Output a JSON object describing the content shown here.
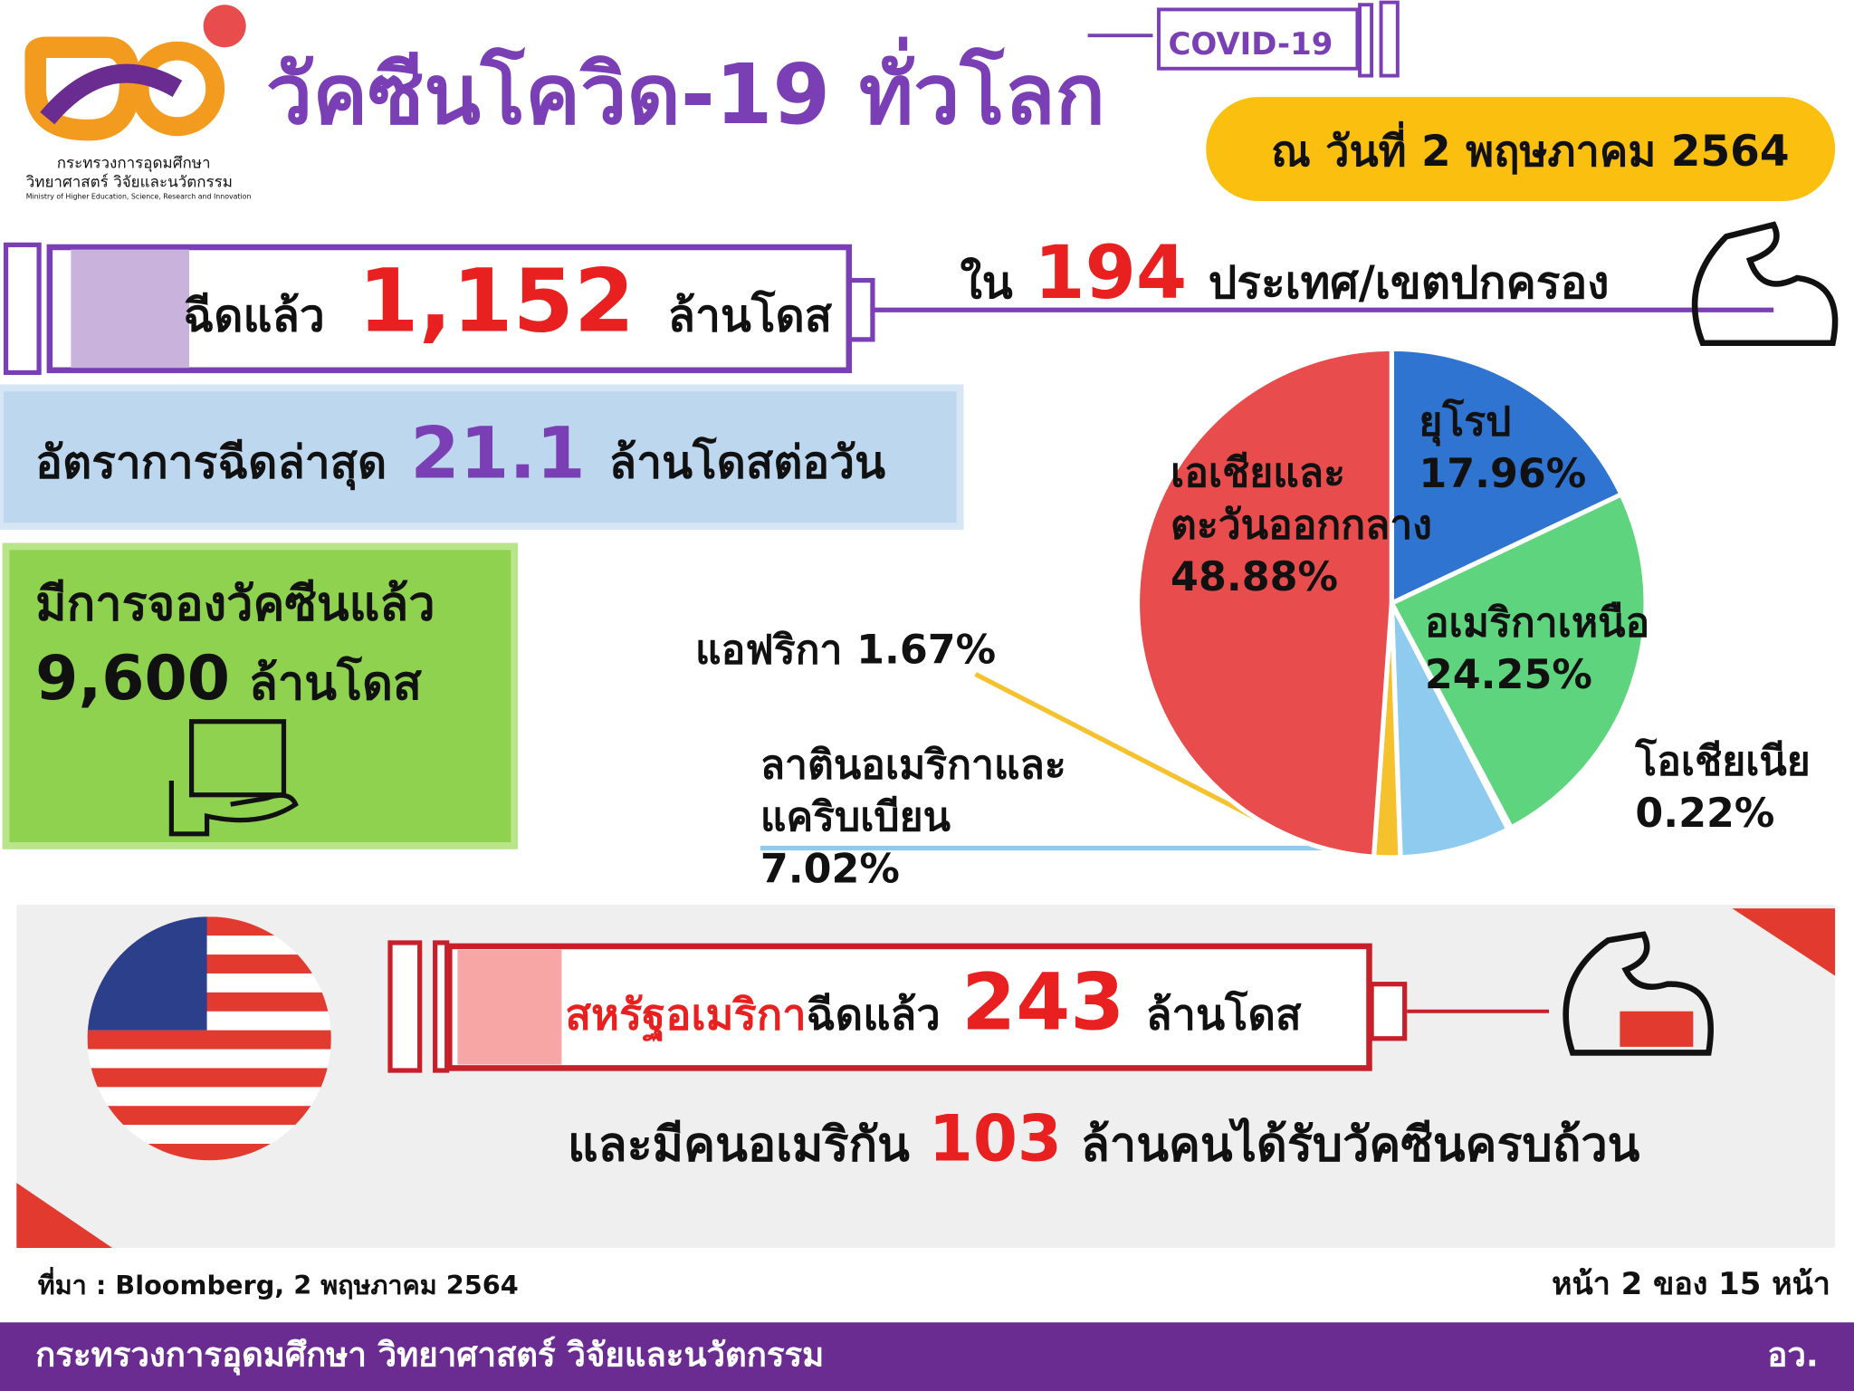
{
  "header": {
    "title": "วัคซีนโควิด-19 ทั่วโลก",
    "badge": "COVID-19",
    "date": "ณ วันที่ 2 พฤษภาคม 2564",
    "logo": {
      "line1": "กระทรวงการอุดมศึกษา",
      "line2": "วิทยาศาสตร์ วิจัยและนวัตกรรม",
      "line3": "Ministry of Higher Education, Science, Research and Innovation"
    }
  },
  "doses": {
    "prefix": "ฉีดแล้ว",
    "value": "1,152",
    "unit": "ล้านโดส"
  },
  "countries": {
    "prefix": "ใน",
    "value": "194",
    "unit": "ประเทศ/เขตปกครอง"
  },
  "rate": {
    "prefix": "อัตราการฉีดล่าสุด",
    "value": "21.1",
    "unit": "ล้านโดสต่อวัน"
  },
  "reserved": {
    "prefix": "มีการจองวัคซีนแล้ว",
    "value": "9,600",
    "unit": "ล้านโดส"
  },
  "chart_data": {
    "type": "pie",
    "categories": [
      "ยุโรป",
      "อเมริกาเหนือ",
      "โอเชียเนีย",
      "ลาตินอเมริกาและแคริบเบียน",
      "แอฟริกา",
      "เอเชียและตะวันออกกลาง"
    ],
    "values": [
      17.96,
      24.25,
      0.22,
      7.02,
      1.67,
      48.88
    ],
    "value_labels": [
      "17.96%",
      "24.25%",
      "0.22%",
      "7.02%",
      "1.67%",
      "48.88%"
    ],
    "colors": [
      "#2f74d0",
      "#5fd47e",
      "#9a9a9a",
      "#8ecbee",
      "#f5c12c",
      "#e84c4c"
    ]
  },
  "usa": {
    "country": "สหรัฐอเมริกา",
    "prefix": "ฉีดแล้ว",
    "value": "243",
    "unit": "ล้านโดส",
    "people_prefix": "และมีคนอเมริกัน",
    "people_value": "103",
    "people_unit": "ล้านคนได้รับวัคซีนครบถ้วน"
  },
  "footer": {
    "source": "ที่มา : Bloomberg, 2 พฤษภาคม 2564",
    "page": "หน้า 2 ของ 15 หน้า",
    "ministry": "กระทรวงการอุดมศึกษา วิทยาศาสตร์ วิจัยและนวัตกรรม",
    "abbr": "อว."
  }
}
